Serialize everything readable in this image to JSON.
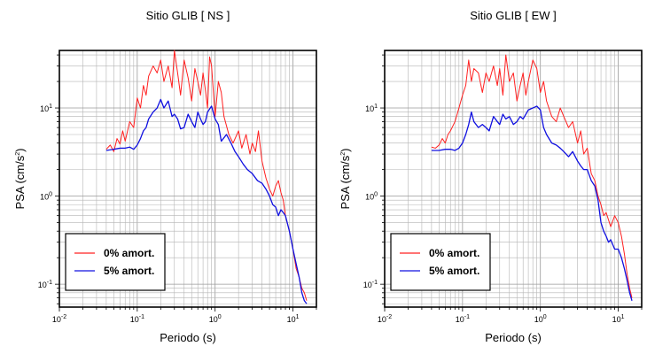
{
  "chart_data": [
    {
      "type": "line",
      "title": "Sitio GLIB [ NS ]",
      "xlabel": "Periodo (s)",
      "ylabel_main": "PSA (cm/s",
      "ylabel_sup": "2",
      "ylabel_end": ")",
      "xscale": "log",
      "yscale": "log",
      "xlim": [
        0.01,
        20
      ],
      "ylim": [
        0.055,
        45
      ],
      "grid": true,
      "legend_position": "bottom-left",
      "x_ticks": [
        {
          "value": 0.01,
          "base": "10",
          "exp": "-2"
        },
        {
          "value": 0.1,
          "base": "10",
          "exp": "-1"
        },
        {
          "value": 1,
          "base": "10",
          "exp": "0"
        },
        {
          "value": 10,
          "base": "10",
          "exp": "1"
        }
      ],
      "y_ticks": [
        {
          "value": 0.1,
          "base": "10",
          "exp": "-1"
        },
        {
          "value": 1,
          "base": "10",
          "exp": "0"
        },
        {
          "value": 10,
          "base": "10",
          "exp": "1"
        }
      ],
      "series": [
        {
          "name": "0% amort.",
          "color": "#ff2020",
          "x": [
            0.04,
            0.045,
            0.05,
            0.055,
            0.06,
            0.065,
            0.07,
            0.08,
            0.09,
            0.1,
            0.11,
            0.12,
            0.13,
            0.14,
            0.16,
            0.18,
            0.2,
            0.22,
            0.25,
            0.28,
            0.3,
            0.33,
            0.36,
            0.4,
            0.45,
            0.5,
            0.55,
            0.6,
            0.65,
            0.7,
            0.75,
            0.8,
            0.85,
            0.9,
            1.0,
            1.1,
            1.2,
            1.3,
            1.5,
            1.7,
            2.0,
            2.2,
            2.5,
            2.8,
            3.0,
            3.3,
            3.6,
            4.0,
            4.5,
            5.0,
            5.5,
            6.0,
            6.5,
            7.0,
            7.5,
            8.0,
            9.0,
            10.0,
            11.0,
            12.0,
            13.0,
            14.0,
            15.0
          ],
          "y": [
            3.4,
            3.8,
            3.2,
            4.5,
            3.9,
            5.5,
            4.2,
            7.0,
            6.0,
            13.0,
            10.0,
            18.0,
            14.0,
            23.0,
            30.0,
            25.0,
            35.0,
            20.0,
            30.0,
            17.0,
            45.0,
            25.0,
            14.0,
            35.0,
            22.0,
            12.0,
            28.0,
            20.0,
            14.0,
            25.0,
            16.0,
            10.0,
            38.0,
            30.0,
            8.0,
            20.0,
            15.0,
            8.0,
            5.0,
            4.0,
            5.5,
            3.5,
            5.0,
            3.0,
            4.0,
            3.2,
            5.5,
            2.5,
            1.6,
            1.2,
            1.0,
            1.3,
            1.5,
            1.1,
            0.9,
            0.6,
            0.4,
            0.25,
            0.15,
            0.12,
            0.09,
            0.08,
            0.065
          ]
        },
        {
          "name": "5% amort.",
          "color": "#1010e0",
          "x": [
            0.04,
            0.05,
            0.06,
            0.07,
            0.08,
            0.09,
            0.1,
            0.11,
            0.12,
            0.13,
            0.14,
            0.16,
            0.18,
            0.2,
            0.22,
            0.25,
            0.28,
            0.3,
            0.33,
            0.36,
            0.4,
            0.45,
            0.5,
            0.55,
            0.6,
            0.65,
            0.7,
            0.75,
            0.8,
            0.9,
            1.0,
            1.1,
            1.2,
            1.4,
            1.6,
            1.8,
            2.0,
            2.3,
            2.6,
            3.0,
            3.5,
            4.0,
            4.5,
            5.0,
            5.5,
            6.0,
            6.5,
            7.0,
            7.5,
            8.0,
            9.0,
            10.0,
            11.0,
            12.0,
            13.0,
            14.0,
            15.0
          ],
          "y": [
            3.3,
            3.4,
            3.5,
            3.5,
            3.6,
            3.4,
            3.8,
            4.5,
            5.5,
            6.0,
            7.5,
            9.0,
            10.0,
            12.5,
            10.0,
            12.0,
            8.0,
            8.5,
            7.5,
            5.8,
            6.0,
            8.5,
            7.0,
            6.0,
            9.0,
            7.5,
            6.5,
            7.0,
            9.0,
            10.5,
            7.5,
            6.5,
            4.2,
            5.0,
            4.0,
            3.2,
            2.8,
            2.3,
            2.0,
            1.8,
            1.5,
            1.4,
            1.2,
            1.0,
            0.8,
            0.75,
            0.6,
            0.7,
            0.65,
            0.6,
            0.4,
            0.25,
            0.17,
            0.12,
            0.08,
            0.065,
            0.06
          ]
        }
      ]
    },
    {
      "type": "line",
      "title": "Sitio GLIB [ EW ]",
      "xlabel": "Periodo (s)",
      "ylabel_main": "PSA (cm/s",
      "ylabel_sup": "2",
      "ylabel_end": ")",
      "xscale": "log",
      "yscale": "log",
      "xlim": [
        0.01,
        20
      ],
      "ylim": [
        0.055,
        45
      ],
      "grid": true,
      "legend_position": "bottom-left",
      "x_ticks": [
        {
          "value": 0.01,
          "base": "10",
          "exp": "-2"
        },
        {
          "value": 0.1,
          "base": "10",
          "exp": "-1"
        },
        {
          "value": 1,
          "base": "10",
          "exp": "0"
        },
        {
          "value": 10,
          "base": "10",
          "exp": "1"
        }
      ],
      "y_ticks": [
        {
          "value": 0.1,
          "base": "10",
          "exp": "-1"
        },
        {
          "value": 1,
          "base": "10",
          "exp": "0"
        },
        {
          "value": 10,
          "base": "10",
          "exp": "1"
        }
      ],
      "series": [
        {
          "name": "0% amort.",
          "color": "#ff2020",
          "x": [
            0.04,
            0.045,
            0.05,
            0.055,
            0.06,
            0.065,
            0.07,
            0.08,
            0.09,
            0.1,
            0.11,
            0.12,
            0.13,
            0.14,
            0.16,
            0.18,
            0.2,
            0.22,
            0.25,
            0.28,
            0.3,
            0.33,
            0.36,
            0.4,
            0.45,
            0.5,
            0.55,
            0.6,
            0.65,
            0.7,
            0.8,
            0.9,
            1.0,
            1.1,
            1.2,
            1.4,
            1.6,
            1.8,
            2.0,
            2.3,
            2.6,
            3.0,
            3.3,
            3.6,
            4.0,
            4.5,
            5.0,
            5.5,
            6.0,
            6.5,
            7.0,
            8.0,
            9.0,
            10.0,
            11.0,
            12.0,
            13.0,
            14.0,
            15.0
          ],
          "y": [
            3.6,
            3.5,
            3.8,
            4.5,
            4.0,
            5.0,
            5.5,
            7.0,
            10.0,
            14.0,
            18.0,
            35.0,
            20.0,
            28.0,
            25.0,
            15.0,
            25.0,
            20.0,
            30.0,
            18.0,
            28.0,
            14.0,
            40.0,
            20.0,
            25.0,
            12.0,
            18.0,
            25.0,
            14.0,
            20.0,
            35.0,
            28.0,
            15.0,
            20.0,
            12.0,
            8.0,
            7.0,
            10.0,
            8.0,
            6.0,
            7.0,
            4.0,
            5.5,
            3.0,
            3.5,
            1.8,
            1.5,
            1.0,
            0.8,
            0.6,
            0.65,
            0.45,
            0.6,
            0.5,
            0.35,
            0.22,
            0.13,
            0.09,
            0.07
          ]
        },
        {
          "name": "5% amort.",
          "color": "#1010e0",
          "x": [
            0.04,
            0.05,
            0.06,
            0.07,
            0.08,
            0.09,
            0.1,
            0.11,
            0.12,
            0.13,
            0.14,
            0.16,
            0.18,
            0.2,
            0.22,
            0.25,
            0.28,
            0.3,
            0.33,
            0.36,
            0.4,
            0.45,
            0.5,
            0.55,
            0.6,
            0.7,
            0.8,
            0.9,
            1.0,
            1.1,
            1.2,
            1.4,
            1.6,
            1.8,
            2.0,
            2.3,
            2.6,
            3.0,
            3.3,
            3.6,
            4.0,
            4.5,
            5.0,
            5.5,
            6.0,
            6.5,
            7.0,
            7.5,
            8.0,
            9.0,
            10.0,
            11.0,
            12.0,
            13.0,
            14.0,
            15.0
          ],
          "y": [
            3.3,
            3.3,
            3.4,
            3.4,
            3.3,
            3.5,
            4.0,
            5.0,
            6.5,
            9.0,
            7.0,
            6.0,
            6.5,
            6.0,
            5.5,
            8.0,
            7.0,
            6.5,
            8.5,
            7.5,
            8.0,
            6.5,
            7.0,
            8.0,
            7.5,
            9.5,
            10.0,
            10.5,
            9.5,
            6.0,
            5.0,
            4.0,
            3.8,
            3.5,
            3.2,
            2.8,
            3.2,
            2.5,
            2.2,
            2.0,
            2.0,
            1.5,
            1.3,
            0.9,
            0.5,
            0.4,
            0.35,
            0.3,
            0.32,
            0.25,
            0.25,
            0.2,
            0.15,
            0.11,
            0.08,
            0.065
          ]
        }
      ]
    }
  ]
}
